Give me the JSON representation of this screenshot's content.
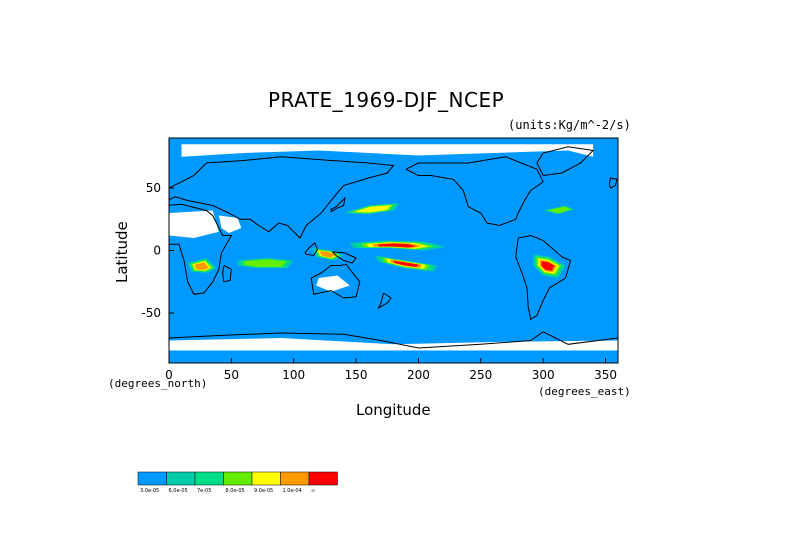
{
  "map": {
    "title": "PRATE_1969-DJF_NCEP",
    "units": "(units:Kg/m^-2/s)",
    "xlabel": "Longitude",
    "ylabel": "Latitude",
    "x_units_left": "(degrees_north)",
    "x_units_right": "(degrees_east)",
    "xlim": [
      0,
      360
    ],
    "ylim": [
      -90,
      90
    ],
    "x_ticks": [
      {
        "value": 0,
        "label": "0"
      },
      {
        "value": 50,
        "label": "50"
      },
      {
        "value": 100,
        "label": "100"
      },
      {
        "value": 150,
        "label": "150"
      },
      {
        "value": 200,
        "label": "200"
      },
      {
        "value": 250,
        "label": "250"
      },
      {
        "value": 300,
        "label": "300"
      },
      {
        "value": 350,
        "label": "350"
      }
    ],
    "y_ticks": [
      {
        "value": 50,
        "label": "50"
      },
      {
        "value": 0,
        "label": "0"
      },
      {
        "value": -50,
        "label": "-50"
      }
    ],
    "background_color": "#0099ff",
    "coastline_color": "#000000"
  },
  "colorbar": {
    "colors": [
      "#0099ff",
      "#00ccaa",
      "#00dd88",
      "#66ee00",
      "#ffff00",
      "#ff9900",
      "#ff0000"
    ],
    "labels": [
      "3.0e-05",
      "6.0e-05",
      "7e-05",
      "8.0e-05",
      "9.0e-05",
      "1.0e-04",
      "∞"
    ]
  },
  "regions": [
    {
      "name": "itcz-west-pacific",
      "level": 6,
      "points": [
        [
          145,
          6
        ],
        [
          175,
          8
        ],
        [
          205,
          7
        ],
        [
          222,
          3
        ],
        [
          205,
          0
        ],
        [
          175,
          2
        ],
        [
          148,
          2
        ]
      ]
    },
    {
      "name": "spcz",
      "level": 6,
      "points": [
        [
          165,
          -4
        ],
        [
          190,
          -8
        ],
        [
          215,
          -12
        ],
        [
          212,
          -17
        ],
        [
          188,
          -14
        ],
        [
          168,
          -9
        ]
      ]
    },
    {
      "name": "amazon",
      "level": 6,
      "points": [
        [
          292,
          -3
        ],
        [
          305,
          -5
        ],
        [
          318,
          -12
        ],
        [
          312,
          -22
        ],
        [
          300,
          -20
        ],
        [
          292,
          -12
        ]
      ]
    },
    {
      "name": "central-africa",
      "level": 5,
      "points": [
        [
          15,
          -10
        ],
        [
          30,
          -6
        ],
        [
          38,
          -14
        ],
        [
          30,
          -18
        ],
        [
          18,
          -17
        ]
      ]
    },
    {
      "name": "indonesia",
      "level": 5,
      "points": [
        [
          115,
          2
        ],
        [
          130,
          0
        ],
        [
          140,
          -4
        ],
        [
          132,
          -8
        ],
        [
          118,
          -5
        ]
      ]
    },
    {
      "name": "north-pacific-storm",
      "level": 4,
      "points": [
        [
          140,
          30
        ],
        [
          160,
          36
        ],
        [
          185,
          38
        ],
        [
          180,
          32
        ],
        [
          158,
          29
        ]
      ]
    },
    {
      "name": "indian-ocean",
      "level": 3,
      "points": [
        [
          55,
          -8
        ],
        [
          80,
          -6
        ],
        [
          100,
          -8
        ],
        [
          95,
          -14
        ],
        [
          70,
          -14
        ],
        [
          55,
          -12
        ]
      ]
    },
    {
      "name": "north-atlantic",
      "level": 3,
      "points": [
        [
          300,
          32
        ],
        [
          318,
          36
        ],
        [
          325,
          33
        ],
        [
          312,
          29
        ]
      ]
    }
  ],
  "no_data_patches": [
    {
      "name": "sahara",
      "points": [
        [
          0,
          30
        ],
        [
          35,
          32
        ],
        [
          40,
          15
        ],
        [
          20,
          10
        ],
        [
          0,
          12
        ],
        [
          -5,
          20
        ]
      ]
    },
    {
      "name": "arabia",
      "points": [
        [
          40,
          28
        ],
        [
          55,
          26
        ],
        [
          58,
          18
        ],
        [
          48,
          14
        ],
        [
          42,
          18
        ]
      ]
    },
    {
      "name": "antarctica-coast",
      "points": [
        [
          0,
          -72
        ],
        [
          90,
          -70
        ],
        [
          180,
          -75
        ],
        [
          270,
          -73
        ],
        [
          360,
          -72
        ],
        [
          360,
          -80
        ],
        [
          0,
          -80
        ]
      ]
    },
    {
      "name": "australia-interior",
      "points": [
        [
          120,
          -22
        ],
        [
          135,
          -20
        ],
        [
          145,
          -28
        ],
        [
          130,
          -33
        ],
        [
          118,
          -28
        ]
      ]
    },
    {
      "name": "arctic",
      "points": [
        [
          10,
          75
        ],
        [
          60,
          78
        ],
        [
          120,
          80
        ],
        [
          200,
          76
        ],
        [
          260,
          78
        ],
        [
          320,
          80
        ],
        [
          340,
          75
        ],
        [
          340,
          85
        ],
        [
          10,
          85
        ]
      ]
    }
  ],
  "coastlines": [
    {
      "name": "north-america",
      "points": [
        [
          190,
          65
        ],
        [
          200,
          70
        ],
        [
          240,
          70
        ],
        [
          270,
          75
        ],
        [
          295,
          65
        ],
        [
          300,
          55
        ],
        [
          290,
          48
        ],
        [
          285,
          40
        ],
        [
          280,
          30
        ],
        [
          278,
          25
        ],
        [
          265,
          20
        ],
        [
          255,
          22
        ],
        [
          250,
          30
        ],
        [
          240,
          35
        ],
        [
          236,
          48
        ],
        [
          228,
          57
        ],
        [
          210,
          60
        ],
        [
          200,
          60
        ],
        [
          190,
          65
        ]
      ]
    },
    {
      "name": "south-america",
      "points": [
        [
          280,
          10
        ],
        [
          290,
          12
        ],
        [
          300,
          8
        ],
        [
          315,
          -5
        ],
        [
          322,
          -8
        ],
        [
          318,
          -22
        ],
        [
          305,
          -30
        ],
        [
          300,
          -40
        ],
        [
          295,
          -52
        ],
        [
          290,
          -55
        ],
        [
          288,
          -45
        ],
        [
          287,
          -30
        ],
        [
          283,
          -18
        ],
        [
          278,
          -5
        ],
        [
          280,
          10
        ]
      ]
    },
    {
      "name": "africa",
      "points": [
        [
          -15,
          35
        ],
        [
          10,
          37
        ],
        [
          30,
          32
        ],
        [
          35,
          28
        ],
        [
          43,
          12
        ],
        [
          50,
          12
        ],
        [
          42,
          -2
        ],
        [
          40,
          -15
        ],
        [
          35,
          -25
        ],
        [
          28,
          -34
        ],
        [
          20,
          -35
        ],
        [
          15,
          -25
        ],
        [
          12,
          -8
        ],
        [
          8,
          5
        ],
        [
          -5,
          5
        ],
        [
          -15,
          12
        ],
        [
          -17,
          22
        ],
        [
          -15,
          35
        ]
      ]
    },
    {
      "name": "europe-asia",
      "points": [
        [
          -10,
          36
        ],
        [
          -10,
          44
        ],
        [
          0,
          50
        ],
        [
          10,
          55
        ],
        [
          20,
          60
        ],
        [
          30,
          70
        ],
        [
          60,
          72
        ],
        [
          90,
          75
        ],
        [
          130,
          72
        ],
        [
          160,
          70
        ],
        [
          180,
          68
        ],
        [
          175,
          62
        ],
        [
          160,
          58
        ],
        [
          140,
          52
        ],
        [
          130,
          40
        ],
        [
          122,
          30
        ],
        [
          110,
          20
        ],
        [
          105,
          10
        ],
        [
          100,
          15
        ],
        [
          95,
          20
        ],
        [
          88,
          22
        ],
        [
          80,
          15
        ],
        [
          72,
          20
        ],
        [
          65,
          25
        ],
        [
          57,
          25
        ],
        [
          48,
          30
        ],
        [
          35,
          36
        ],
        [
          25,
          38
        ],
        [
          15,
          40
        ],
        [
          5,
          43
        ],
        [
          -10,
          36
        ]
      ]
    },
    {
      "name": "australia",
      "points": [
        [
          114,
          -22
        ],
        [
          122,
          -18
        ],
        [
          130,
          -12
        ],
        [
          137,
          -12
        ],
        [
          142,
          -11
        ],
        [
          145,
          -15
        ],
        [
          153,
          -25
        ],
        [
          150,
          -37
        ],
        [
          140,
          -38
        ],
        [
          130,
          -32
        ],
        [
          116,
          -35
        ],
        [
          114,
          -22
        ]
      ]
    },
    {
      "name": "antarctica",
      "points": [
        [
          0,
          -70
        ],
        [
          40,
          -68
        ],
        [
          90,
          -66
        ],
        [
          140,
          -67
        ],
        [
          170,
          -72
        ],
        [
          200,
          -78
        ],
        [
          250,
          -75
        ],
        [
          290,
          -72
        ],
        [
          300,
          -65
        ],
        [
          320,
          -75
        ],
        [
          360,
          -70
        ]
      ]
    },
    {
      "name": "greenland",
      "points": [
        [
          300,
          60
        ],
        [
          315,
          62
        ],
        [
          330,
          70
        ],
        [
          340,
          80
        ],
        [
          320,
          83
        ],
        [
          300,
          78
        ],
        [
          295,
          70
        ],
        [
          300,
          60
        ]
      ]
    },
    {
      "name": "uk",
      "points": [
        [
          354,
          50
        ],
        [
          358,
          52
        ],
        [
          359,
          57
        ],
        [
          354,
          58
        ],
        [
          353,
          53
        ],
        [
          354,
          50
        ]
      ]
    },
    {
      "name": "madagascar",
      "points": [
        [
          44,
          -12
        ],
        [
          50,
          -15
        ],
        [
          49,
          -24
        ],
        [
          44,
          -25
        ],
        [
          43,
          -18
        ],
        [
          44,
          -12
        ]
      ]
    },
    {
      "name": "japan",
      "points": [
        [
          130,
          31
        ],
        [
          135,
          34
        ],
        [
          140,
          36
        ],
        [
          141,
          42
        ],
        [
          139,
          40
        ],
        [
          134,
          35
        ],
        [
          130,
          33
        ],
        [
          130,
          31
        ]
      ]
    },
    {
      "name": "new-zealand",
      "points": [
        [
          172,
          -34
        ],
        [
          178,
          -38
        ],
        [
          175,
          -42
        ],
        [
          168,
          -46
        ],
        [
          170,
          -42
        ],
        [
          172,
          -34
        ]
      ]
    },
    {
      "name": "borneo",
      "points": [
        [
          109,
          -2
        ],
        [
          112,
          2
        ],
        [
          117,
          6
        ],
        [
          119,
          1
        ],
        [
          116,
          -4
        ],
        [
          110,
          -3
        ],
        [
          109,
          -2
        ]
      ]
    },
    {
      "name": "new-guinea",
      "points": [
        [
          131,
          -1
        ],
        [
          141,
          -2
        ],
        [
          150,
          -6
        ],
        [
          147,
          -10
        ],
        [
          140,
          -8
        ],
        [
          134,
          -4
        ],
        [
          131,
          -1
        ]
      ]
    }
  ]
}
